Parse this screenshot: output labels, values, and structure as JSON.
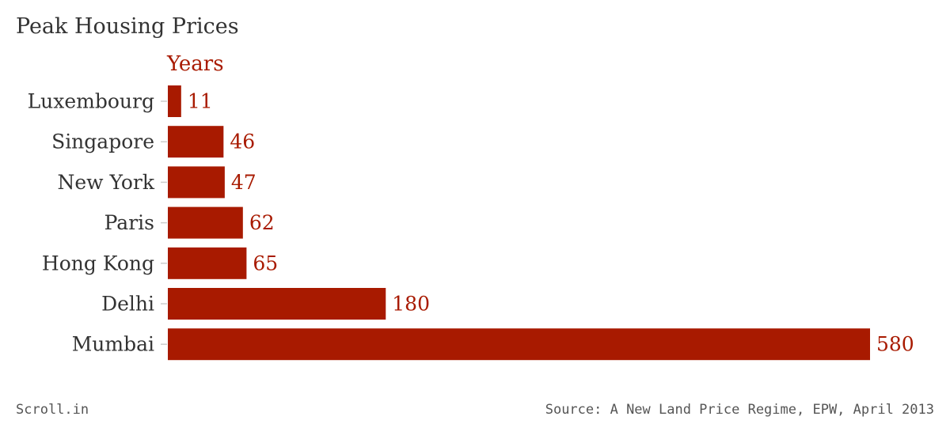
{
  "chart_data": {
    "type": "bar",
    "orientation": "horizontal",
    "title": "Peak Housing Prices",
    "series": [
      {
        "name": "Years",
        "values": [
          11,
          46,
          47,
          62,
          65,
          180,
          580
        ]
      }
    ],
    "categories": [
      "Luxembourg",
      "Singapore",
      "New York",
      "Paris",
      "Hong Kong",
      "Delhi",
      "Mumbai"
    ],
    "xlim": [
      0,
      580
    ],
    "grid": false,
    "data_labels": true,
    "colors": {
      "bar": "#a81a00",
      "category_text": "#333333",
      "tick": "#cccccc"
    }
  },
  "footer": {
    "brand": "Scroll.in",
    "source": "Source: A New Land Price Regime, EPW, April 2013"
  }
}
